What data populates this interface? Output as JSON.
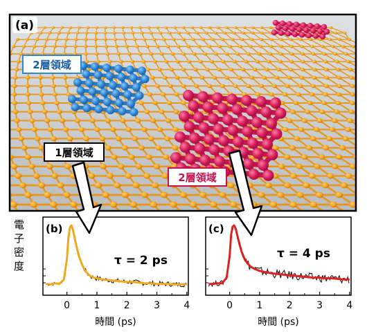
{
  "panel_a": {
    "label": "(a)",
    "regions": {
      "blue_bilayer": "2層領域",
      "monolayer": "1層領域",
      "red_bilayer": "2層領域"
    },
    "colors": {
      "lattice": "#f2a21e",
      "blue": "#2d86d6",
      "red": "#d81b5c",
      "background": "#cfd3d6"
    }
  },
  "panel_b": {
    "label": "(b)",
    "tau_label": "τ = 2 ps",
    "ylabel": "電子密度",
    "xlabel": "時間 (ps)",
    "x_ticks": [
      "0",
      "1",
      "2",
      "3",
      "4"
    ],
    "fit_color": "#f0a81c"
  },
  "panel_c": {
    "label": "(c)",
    "tau_label": "τ = 4 ps",
    "xlabel": "時間 (ps)",
    "x_ticks": [
      "0",
      "1",
      "2",
      "3",
      "4"
    ],
    "fit_color": "#e02020"
  },
  "chart_data": [
    {
      "type": "line",
      "xlim": [
        -0.8,
        4.05
      ],
      "x_ticks": [
        0,
        1,
        2,
        3,
        4
      ],
      "series": [
        {
          "x": [
            -0.7,
            -0.55,
            -0.4,
            -0.25,
            -0.1,
            0.0,
            0.05,
            0.1,
            0.15,
            0.2,
            0.3,
            0.4,
            0.5,
            0.6,
            0.7,
            0.8,
            0.9,
            1.0,
            1.2,
            1.4,
            1.6,
            1.8,
            2.0,
            2.2,
            2.4,
            2.6,
            2.8,
            3.0,
            3.2,
            3.4,
            3.6,
            3.8,
            4.0
          ],
          "y": [
            0.05,
            0.04,
            0.06,
            0.05,
            0.12,
            0.45,
            0.8,
            0.97,
            1.0,
            0.93,
            0.7,
            0.5,
            0.37,
            0.27,
            0.21,
            0.17,
            0.15,
            0.14,
            0.12,
            0.11,
            0.1,
            0.09,
            0.08,
            0.08,
            0.07,
            0.06,
            0.06,
            0.05,
            0.05,
            0.05,
            0.04,
            0.04,
            0.04
          ]
        }
      ]
    },
    {
      "type": "line",
      "xlim": [
        -0.8,
        4.05
      ],
      "x_ticks": [
        0,
        1,
        2,
        3,
        4
      ],
      "series": [
        {
          "x": [
            -0.7,
            -0.55,
            -0.4,
            -0.25,
            -0.1,
            0.0,
            0.05,
            0.1,
            0.15,
            0.2,
            0.3,
            0.4,
            0.5,
            0.6,
            0.7,
            0.8,
            0.9,
            1.0,
            1.2,
            1.4,
            1.6,
            1.8,
            2.0,
            2.2,
            2.4,
            2.6,
            2.8,
            3.0,
            3.2,
            3.4,
            3.6,
            3.8,
            4.0
          ],
          "y": [
            0.05,
            0.05,
            0.06,
            0.06,
            0.15,
            0.5,
            0.85,
            0.98,
            1.0,
            0.95,
            0.75,
            0.57,
            0.45,
            0.38,
            0.33,
            0.3,
            0.28,
            0.26,
            0.24,
            0.22,
            0.21,
            0.2,
            0.19,
            0.18,
            0.17,
            0.16,
            0.15,
            0.15,
            0.14,
            0.14,
            0.13,
            0.12,
            0.12
          ]
        }
      ]
    }
  ]
}
